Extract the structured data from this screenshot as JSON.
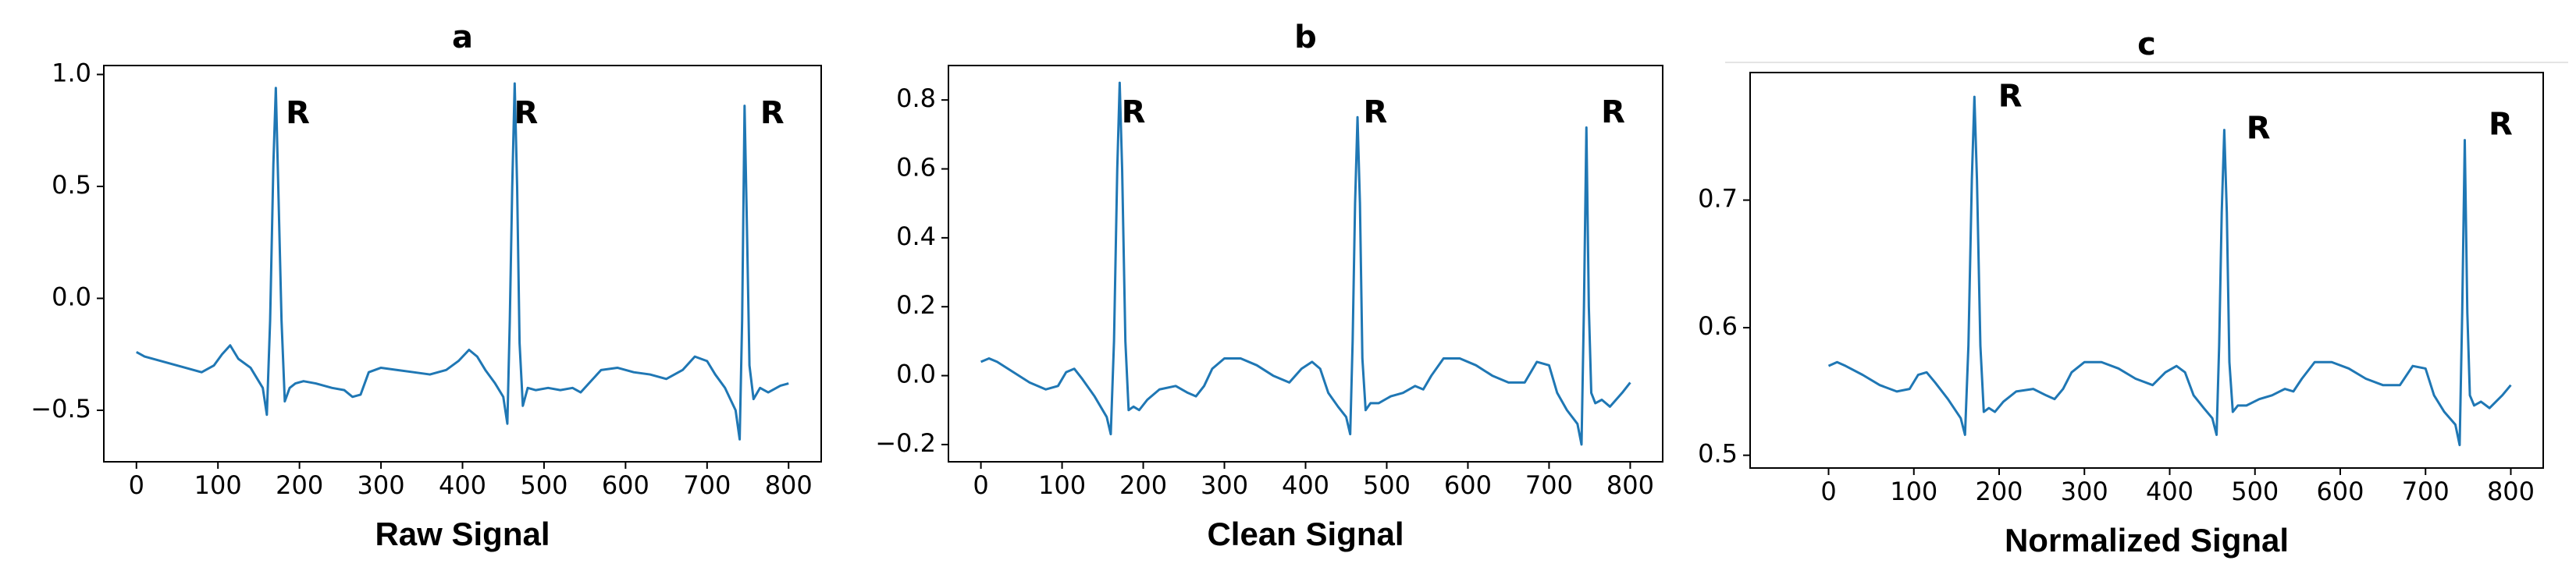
{
  "chart_data": [
    {
      "type": "line",
      "title": "a",
      "x_label": "Raw Signal",
      "x": [
        0,
        10,
        20,
        40,
        60,
        80,
        95,
        105,
        115,
        125,
        140,
        155,
        160,
        164,
        168,
        171,
        174,
        178,
        182,
        188,
        195,
        205,
        220,
        240,
        255,
        265,
        275,
        285,
        300,
        320,
        340,
        360,
        380,
        395,
        408,
        418,
        428,
        440,
        450,
        455,
        458,
        461,
        464,
        467,
        470,
        474,
        480,
        490,
        505,
        520,
        535,
        545,
        555,
        570,
        590,
        610,
        630,
        650,
        670,
        685,
        700,
        710,
        722,
        735,
        740,
        743,
        746,
        749,
        752,
        757,
        765,
        775,
        790,
        800
      ],
      "values": [
        -0.24,
        -0.26,
        -0.27,
        -0.29,
        -0.31,
        -0.33,
        -0.3,
        -0.25,
        -0.21,
        -0.27,
        -0.31,
        -0.4,
        -0.52,
        -0.1,
        0.6,
        0.94,
        0.5,
        -0.1,
        -0.46,
        -0.4,
        -0.38,
        -0.37,
        -0.38,
        -0.4,
        -0.41,
        -0.44,
        -0.43,
        -0.33,
        -0.31,
        -0.32,
        -0.33,
        -0.34,
        -0.32,
        -0.28,
        -0.23,
        -0.26,
        -0.32,
        -0.38,
        -0.44,
        -0.56,
        -0.1,
        0.5,
        0.96,
        0.5,
        -0.2,
        -0.48,
        -0.4,
        -0.41,
        -0.4,
        -0.41,
        -0.4,
        -0.42,
        -0.38,
        -0.32,
        -0.31,
        -0.33,
        -0.34,
        -0.36,
        -0.32,
        -0.26,
        -0.28,
        -0.34,
        -0.4,
        -0.5,
        -0.63,
        -0.1,
        0.86,
        0.3,
        -0.3,
        -0.45,
        -0.4,
        -0.42,
        -0.39,
        -0.38
      ],
      "color": "#1f77b4",
      "xlim": [
        -40,
        840
      ],
      "xticks": [
        0,
        100,
        200,
        300,
        400,
        500,
        600,
        700,
        800
      ],
      "ylim": [
        -0.73,
        1.04
      ],
      "yticks": [
        {
          "value": -0.5,
          "label": "−0.5"
        },
        {
          "value": 0,
          "label": "0.0"
        },
        0.5,
        {
          "value": 1,
          "label": "1.0"
        }
      ],
      "annotations": [
        {
          "text": "R",
          "x": 198,
          "y": 0.82
        },
        {
          "text": "R",
          "x": 478,
          "y": 0.82
        },
        {
          "text": "R",
          "x": 780,
          "y": 0.82
        }
      ]
    },
    {
      "type": "line",
      "title": "b",
      "x_label": "Clean Signal",
      "x": [
        0,
        10,
        20,
        40,
        60,
        80,
        95,
        105,
        115,
        125,
        140,
        155,
        160,
        164,
        168,
        171,
        174,
        178,
        182,
        188,
        195,
        205,
        220,
        240,
        255,
        265,
        275,
        285,
        300,
        320,
        340,
        360,
        380,
        395,
        408,
        418,
        428,
        440,
        450,
        455,
        458,
        461,
        464,
        467,
        470,
        474,
        480,
        490,
        505,
        520,
        535,
        545,
        555,
        570,
        590,
        610,
        630,
        650,
        670,
        685,
        700,
        710,
        722,
        735,
        740,
        743,
        746,
        749,
        752,
        757,
        765,
        775,
        790,
        800
      ],
      "values": [
        0.04,
        0.05,
        0.04,
        0.01,
        -0.02,
        -0.04,
        -0.03,
        0.01,
        0.02,
        -0.01,
        -0.06,
        -0.12,
        -0.17,
        0.1,
        0.6,
        0.85,
        0.6,
        0.1,
        -0.1,
        -0.09,
        -0.1,
        -0.07,
        -0.04,
        -0.03,
        -0.05,
        -0.06,
        -0.03,
        0.02,
        0.05,
        0.05,
        0.03,
        0,
        -0.02,
        0.02,
        0.04,
        0.02,
        -0.05,
        -0.09,
        -0.12,
        -0.17,
        0.1,
        0.5,
        0.75,
        0.5,
        0.05,
        -0.1,
        -0.08,
        -0.08,
        -0.06,
        -0.05,
        -0.03,
        -0.04,
        0,
        0.05,
        0.05,
        0.03,
        0,
        -0.02,
        -0.02,
        0.04,
        0.03,
        -0.05,
        -0.1,
        -0.14,
        -0.2,
        0.2,
        0.72,
        0.2,
        -0.05,
        -0.08,
        -0.07,
        -0.09,
        -0.05,
        -0.02
      ],
      "color": "#1f77b4",
      "xlim": [
        -40,
        840
      ],
      "xticks": [
        0,
        100,
        200,
        300,
        400,
        500,
        600,
        700,
        800
      ],
      "ylim": [
        -0.25,
        0.9
      ],
      "yticks": [
        {
          "value": -0.2,
          "label": "−0.2"
        },
        {
          "value": 0,
          "label": "0.0"
        },
        0.2,
        0.4,
        0.6,
        0.8
      ],
      "annotations": [
        {
          "text": "R",
          "x": 188,
          "y": 0.76
        },
        {
          "text": "R",
          "x": 486,
          "y": 0.76
        },
        {
          "text": "R",
          "x": 779,
          "y": 0.76
        }
      ]
    },
    {
      "type": "line",
      "title": "c",
      "x_label": "Normalized Signal",
      "x": [
        0,
        10,
        20,
        40,
        60,
        80,
        95,
        105,
        115,
        125,
        140,
        155,
        160,
        164,
        168,
        171,
        174,
        178,
        182,
        188,
        195,
        205,
        220,
        240,
        255,
        265,
        275,
        285,
        300,
        320,
        340,
        360,
        380,
        395,
        408,
        418,
        428,
        440,
        450,
        455,
        458,
        461,
        464,
        467,
        470,
        474,
        480,
        490,
        505,
        520,
        535,
        545,
        555,
        570,
        590,
        610,
        630,
        650,
        670,
        685,
        700,
        710,
        722,
        735,
        740,
        743,
        746,
        749,
        752,
        757,
        765,
        775,
        790,
        800
      ],
      "values": [
        0.57,
        0.573,
        0.57,
        0.563,
        0.555,
        0.55,
        0.552,
        0.563,
        0.565,
        0.557,
        0.544,
        0.529,
        0.516,
        0.586,
        0.716,
        0.781,
        0.716,
        0.586,
        0.534,
        0.537,
        0.534,
        0.542,
        0.55,
        0.552,
        0.547,
        0.544,
        0.552,
        0.565,
        0.573,
        0.573,
        0.568,
        0.56,
        0.555,
        0.565,
        0.57,
        0.565,
        0.547,
        0.537,
        0.529,
        0.516,
        0.586,
        0.69,
        0.755,
        0.69,
        0.573,
        0.534,
        0.539,
        0.539,
        0.544,
        0.547,
        0.552,
        0.55,
        0.56,
        0.573,
        0.573,
        0.568,
        0.56,
        0.555,
        0.555,
        0.57,
        0.568,
        0.547,
        0.534,
        0.524,
        0.508,
        0.612,
        0.747,
        0.612,
        0.547,
        0.539,
        0.542,
        0.537,
        0.547,
        0.555
      ],
      "color": "#1f77b4",
      "xlim": [
        -92,
        838
      ],
      "xticks": [
        0,
        100,
        200,
        300,
        400,
        500,
        600,
        700,
        800
      ],
      "ylim": [
        0.49,
        0.8
      ],
      "yticks": [
        0.5,
        0.6,
        0.7
      ],
      "annotations": [
        {
          "text": "R",
          "x": 213,
          "y": 0.78
        },
        {
          "text": "R",
          "x": 504,
          "y": 0.755
        },
        {
          "text": "R",
          "x": 788,
          "y": 0.758
        }
      ]
    }
  ]
}
